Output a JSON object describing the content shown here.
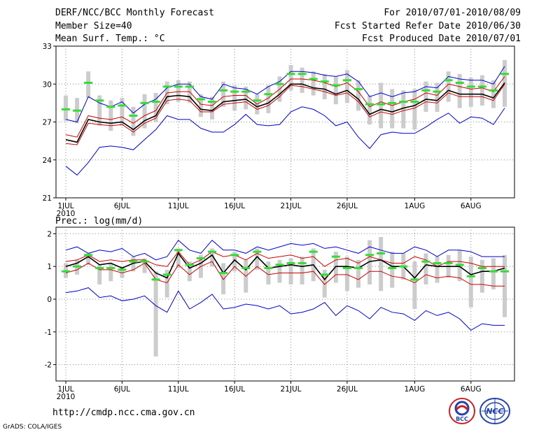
{
  "header": {
    "title": "DERF/NCC/BCC Monthly Forecast",
    "member_size": "Member Size=40",
    "variable": "Mean Surf. Temp.: °C",
    "forecast_for": "For 2010/07/01-2010/08/09",
    "started_refer": "Fcst Started Refer Date 2010/06/30",
    "produced": "Fcst Produced Date 2010/07/01"
  },
  "footer": {
    "url": "http://cmdp.ncc.cma.gov.cn",
    "credit": "GrADS: COLA/IGES",
    "logo_left_text": "BCC",
    "logo_right_text": "NCC"
  },
  "colors": {
    "max_line": "#0000cc",
    "min_line": "#0000cc",
    "upper_line": "#cc0000",
    "lower_line": "#cc0000",
    "mean_line": "#000000",
    "median_marker": "#33dd33",
    "range_bar": "#cccccc",
    "grid": "#888888"
  },
  "chart_data": [
    {
      "type": "line",
      "title": "Mean Surf. Temp.: °C",
      "x_start_day": 1,
      "x_tick_labels": [
        "1JUL",
        "6JUL",
        "11JUL",
        "16JUL",
        "21JUL",
        "26JUL",
        "1AUG",
        "6AUG"
      ],
      "x_tick_index": [
        0,
        5,
        10,
        15,
        20,
        25,
        31,
        36
      ],
      "x_year_label": "2010",
      "ylim": [
        21,
        33
      ],
      "y_ticks": [
        21,
        24,
        27,
        30,
        33
      ],
      "n_days": 40,
      "series": [
        {
          "name": "max",
          "values": [
            27.2,
            27.0,
            29.0,
            28.5,
            28.2,
            28.6,
            27.7,
            28.4,
            28.8,
            29.7,
            30.0,
            30.0,
            29.0,
            28.8,
            30.0,
            29.7,
            29.6,
            29.2,
            29.8,
            30.2,
            31.0,
            31.0,
            30.9,
            30.7,
            30.6,
            30.8,
            30.2,
            29.0,
            29.3,
            29.0,
            29.3,
            29.4,
            29.8,
            29.7,
            30.6,
            30.4,
            30.3,
            30.3,
            30.0,
            31.4
          ]
        },
        {
          "name": "upper",
          "values": [
            26.0,
            25.8,
            27.5,
            27.3,
            27.2,
            27.4,
            26.9,
            27.5,
            27.9,
            29.3,
            29.4,
            29.4,
            28.4,
            28.3,
            29.0,
            29.1,
            29.1,
            28.4,
            28.9,
            29.6,
            30.4,
            30.4,
            30.3,
            30.1,
            29.8,
            30.1,
            29.4,
            28.2,
            28.6,
            28.3,
            28.6,
            28.8,
            29.3,
            29.1,
            30.0,
            29.8,
            29.6,
            29.7,
            29.4,
            30.6
          ]
        },
        {
          "name": "mean",
          "values": [
            25.6,
            25.4,
            27.2,
            27.0,
            26.9,
            27.0,
            26.4,
            27.1,
            27.5,
            29.0,
            29.1,
            29.0,
            28.0,
            27.9,
            28.6,
            28.7,
            28.8,
            28.2,
            28.5,
            29.2,
            30.0,
            30.0,
            29.7,
            29.6,
            29.2,
            29.5,
            28.8,
            27.6,
            28.0,
            27.8,
            28.1,
            28.3,
            28.8,
            28.7,
            29.5,
            29.2,
            29.2,
            29.2,
            28.9,
            30.1
          ]
        },
        {
          "name": "lower",
          "values": [
            25.3,
            25.2,
            26.9,
            26.8,
            26.7,
            26.8,
            26.2,
            26.9,
            27.3,
            28.7,
            28.8,
            28.7,
            27.8,
            27.8,
            28.4,
            28.5,
            28.6,
            28.0,
            28.3,
            29.0,
            29.9,
            29.8,
            29.6,
            29.4,
            29.1,
            29.3,
            28.6,
            27.4,
            27.8,
            27.6,
            27.9,
            28.1,
            28.6,
            28.5,
            29.3,
            29.0,
            29.0,
            29.0,
            28.7,
            30.0
          ]
        },
        {
          "name": "min",
          "values": [
            23.5,
            22.8,
            23.8,
            25.0,
            25.1,
            25.0,
            24.8,
            25.6,
            26.4,
            27.5,
            27.2,
            27.2,
            26.5,
            26.2,
            26.2,
            26.8,
            27.6,
            26.8,
            26.7,
            26.8,
            27.8,
            28.2,
            28.0,
            27.5,
            26.7,
            27.0,
            25.8,
            24.9,
            26.0,
            26.2,
            26.1,
            26.1,
            26.6,
            27.2,
            27.7,
            26.9,
            27.4,
            27.3,
            26.8,
            28.1
          ]
        },
        {
          "name": "median_marker",
          "values": [
            28.0,
            27.9,
            30.1,
            28.7,
            28.2,
            28.3,
            27.5,
            28.5,
            28.6,
            29.8,
            29.8,
            29.8,
            28.8,
            28.6,
            29.5,
            29.4,
            29.4,
            28.7,
            29.2,
            30.0,
            30.8,
            30.8,
            30.4,
            30.2,
            29.9,
            30.3,
            29.6,
            28.4,
            28.4,
            28.5,
            28.6,
            28.6,
            29.5,
            29.4,
            30.3,
            30.1,
            29.8,
            29.8,
            29.5,
            30.8
          ]
        },
        {
          "name": "range_bar_high",
          "values": [
            29.1,
            28.9,
            31.0,
            29.1,
            28.7,
            28.9,
            28.2,
            29.2,
            29.3,
            30.2,
            30.3,
            30.2,
            29.2,
            29.0,
            30.2,
            29.9,
            29.8,
            29.2,
            29.9,
            30.6,
            31.5,
            31.3,
            31.0,
            30.8,
            30.6,
            31.1,
            30.3,
            29.1,
            30.1,
            29.6,
            29.5,
            29.6,
            30.2,
            30.1,
            31.0,
            30.8,
            30.5,
            30.7,
            30.3,
            31.9
          ]
        },
        {
          "name": "range_bar_low",
          "values": [
            27.1,
            26.9,
            28.9,
            26.7,
            26.3,
            26.7,
            25.9,
            26.5,
            27.0,
            28.4,
            28.6,
            28.5,
            27.4,
            27.2,
            28.2,
            27.9,
            28.0,
            27.6,
            27.7,
            28.6,
            29.5,
            29.3,
            29.1,
            28.8,
            28.4,
            28.5,
            27.9,
            26.8,
            26.5,
            26.5,
            26.5,
            26.4,
            27.8,
            27.8,
            28.6,
            28.1,
            28.2,
            28.3,
            28.1,
            28.2
          ]
        }
      ]
    },
    {
      "type": "line",
      "title": "Prec.: log(mm/d)",
      "x_start_day": 1,
      "x_tick_labels": [
        "1JUL",
        "6JUL",
        "11JUL",
        "16JUL",
        "21JUL",
        "26JUL",
        "1AUG",
        "6AUG"
      ],
      "x_tick_index": [
        0,
        5,
        10,
        15,
        20,
        25,
        31,
        36
      ],
      "x_year_label": "2010",
      "ylim": [
        -2.5,
        2.2
      ],
      "y_ticks": [
        -2,
        -1,
        0,
        1,
        2
      ],
      "n_days": 40,
      "series": [
        {
          "name": "max",
          "values": [
            1.5,
            1.6,
            1.4,
            1.5,
            1.45,
            1.55,
            1.3,
            1.4,
            1.2,
            1.3,
            1.8,
            1.5,
            1.4,
            1.8,
            1.5,
            1.5,
            1.4,
            1.6,
            1.5,
            1.6,
            1.7,
            1.65,
            1.7,
            1.55,
            1.6,
            1.5,
            1.4,
            1.6,
            1.5,
            1.4,
            1.4,
            1.6,
            1.5,
            1.3,
            1.5,
            1.5,
            1.45,
            1.3,
            1.3,
            1.3
          ]
        },
        {
          "name": "upper",
          "values": [
            1.15,
            1.2,
            1.35,
            1.15,
            1.2,
            1.15,
            1.2,
            1.2,
            1.05,
            1.0,
            1.45,
            1.05,
            1.2,
            1.45,
            1.3,
            1.35,
            1.2,
            1.4,
            1.25,
            1.3,
            1.35,
            1.25,
            1.3,
            1.0,
            1.2,
            1.25,
            1.1,
            1.3,
            1.2,
            1.1,
            1.1,
            1.3,
            1.2,
            1.0,
            1.15,
            1.15,
            1.1,
            1.0,
            1.0,
            1.0
          ]
        },
        {
          "name": "mean",
          "values": [
            1.0,
            1.1,
            1.3,
            1.05,
            1.1,
            0.95,
            1.1,
            1.15,
            0.8,
            0.65,
            1.4,
            0.95,
            1.1,
            1.35,
            0.8,
            1.2,
            0.9,
            1.3,
            0.95,
            1.0,
            1.05,
            1.0,
            1.05,
            0.6,
            1.0,
            1.0,
            0.95,
            1.15,
            1.2,
            1.0,
            1.0,
            0.65,
            1.05,
            1.0,
            1.0,
            1.0,
            0.75,
            0.85,
            0.85,
            0.95
          ]
        },
        {
          "name": "lower",
          "values": [
            0.8,
            0.9,
            1.1,
            0.9,
            0.9,
            0.8,
            0.9,
            1.1,
            0.6,
            0.5,
            1.05,
            0.75,
            1.0,
            1.15,
            0.6,
            1.0,
            0.7,
            1.0,
            0.75,
            0.8,
            0.8,
            0.8,
            0.85,
            0.45,
            0.75,
            0.75,
            0.6,
            0.85,
            0.85,
            0.7,
            0.65,
            0.5,
            0.75,
            0.65,
            0.7,
            0.65,
            0.45,
            0.45,
            0.4,
            0.4
          ]
        },
        {
          "name": "min",
          "values": [
            0.2,
            0.25,
            0.35,
            0.05,
            0.1,
            -0.05,
            0.0,
            0.1,
            -0.2,
            -0.4,
            0.25,
            -0.3,
            -0.1,
            0.15,
            -0.3,
            -0.25,
            -0.15,
            -0.2,
            -0.3,
            -0.2,
            -0.45,
            -0.4,
            -0.3,
            -0.1,
            -0.5,
            -0.2,
            -0.35,
            -0.6,
            -0.25,
            -0.4,
            -0.45,
            -0.65,
            -0.35,
            -0.5,
            -0.4,
            -0.6,
            -0.95,
            -0.75,
            -0.8,
            -0.8
          ]
        },
        {
          "name": "median_marker",
          "values": [
            0.85,
            1.0,
            1.35,
            0.95,
            0.95,
            0.9,
            1.15,
            1.15,
            0.6,
            0.75,
            1.5,
            1.05,
            1.25,
            1.45,
            0.8,
            1.35,
            0.95,
            1.45,
            0.95,
            1.05,
            1.1,
            1.1,
            1.45,
            0.75,
            1.3,
            0.95,
            0.95,
            1.35,
            1.4,
            0.95,
            1.0,
            0.6,
            1.15,
            1.1,
            1.1,
            1.05,
            0.7,
            0.95,
            0.85,
            0.85
          ]
        },
        {
          "name": "range_bar_high",
          "values": [
            1.1,
            1.2,
            1.4,
            1.05,
            1.1,
            1.0,
            1.3,
            1.25,
            0.85,
            0.9,
            1.55,
            1.15,
            1.35,
            1.55,
            1.1,
            1.45,
            1.2,
            1.55,
            1.15,
            1.2,
            1.25,
            1.3,
            1.55,
            0.9,
            1.45,
            1.3,
            1.2,
            1.8,
            1.9,
            1.45,
            1.4,
            1.15,
            1.4,
            1.3,
            1.35,
            1.5,
            1.3,
            1.2,
            1.25,
            1.35
          ]
        },
        {
          "name": "range_bar_low",
          "values": [
            0.65,
            0.75,
            1.05,
            0.45,
            0.55,
            0.65,
            0.85,
            0.8,
            -1.75,
            0.05,
            0.95,
            0.55,
            0.65,
            1.0,
            0.15,
            0.85,
            0.2,
            0.9,
            0.45,
            0.5,
            0.45,
            0.45,
            0.55,
            0.05,
            0.5,
            0.25,
            0.35,
            0.45,
            0.25,
            0.35,
            0.6,
            -0.3,
            0.45,
            0.5,
            0.65,
            0.55,
            -0.25,
            0.2,
            0.3,
            -0.55
          ]
        }
      ]
    }
  ]
}
